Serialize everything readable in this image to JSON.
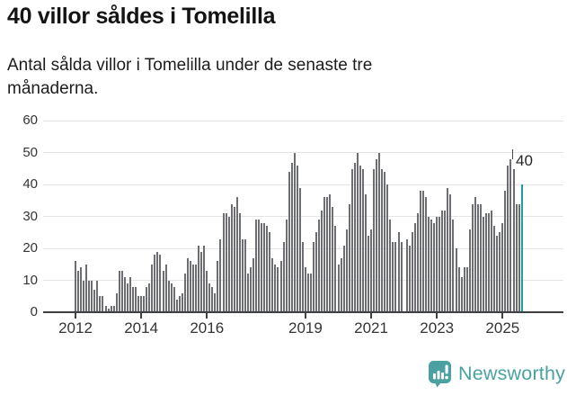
{
  "header": {
    "title": "40 villor såldes i Tomelilla",
    "subtitle": "Antal sålda villor i Tomelilla under de senaste tre månaderna."
  },
  "chart_data": {
    "type": "bar",
    "title": "40 villor såldes i Tomelilla",
    "subtitle": "Antal sålda villor i Tomelilla under de senaste tre månaderna.",
    "x_unit": "month",
    "start": "2012-01",
    "end": "2025-08",
    "ylim": [
      0,
      60
    ],
    "y_ticks": [
      0,
      10,
      20,
      30,
      40,
      50,
      60
    ],
    "x_tick_years": [
      2012,
      2014,
      2016,
      2019,
      2021,
      2023,
      2025
    ],
    "grid": "horizontal",
    "legend": "none",
    "bar_color": "#6d6e71",
    "highlight_color": "#1d9f9f",
    "highlight_index": 163,
    "annotation": {
      "label": "40",
      "target": "2025-08"
    },
    "values": [
      16,
      13,
      14,
      10,
      15,
      10,
      10,
      7,
      10,
      5,
      5,
      2,
      1,
      2,
      2,
      6,
      13,
      13,
      11,
      9,
      11,
      8,
      8,
      5,
      5,
      5,
      8,
      9,
      15,
      18,
      19,
      18,
      13,
      15,
      10,
      9,
      8,
      4,
      5,
      6,
      12,
      17,
      16,
      15,
      15,
      21,
      19,
      21,
      13,
      9,
      8,
      6,
      16,
      23,
      31,
      31,
      30,
      34,
      33,
      36,
      31,
      23,
      23,
      12,
      14,
      17,
      29,
      29,
      28,
      28,
      27,
      25,
      17,
      15,
      14,
      16,
      22,
      29,
      44,
      47,
      50,
      46,
      39,
      22,
      14,
      12,
      12,
      22,
      25,
      29,
      32,
      36,
      36,
      37,
      33,
      27,
      15,
      17,
      21,
      26,
      34,
      45,
      47,
      50,
      46,
      45,
      37,
      24,
      26,
      45,
      48,
      50,
      45,
      44,
      40,
      29,
      22,
      22,
      25,
      22,
      0,
      23,
      21,
      25,
      28,
      31,
      38,
      38,
      36,
      30,
      29,
      28,
      30,
      30,
      32,
      32,
      39,
      37,
      29,
      20,
      14,
      11,
      14,
      14,
      26,
      34,
      36,
      34,
      34,
      30,
      31,
      31,
      32,
      27,
      24,
      25,
      28,
      38,
      46,
      48,
      45,
      34,
      34,
      40
    ]
  },
  "footer": {
    "brand": "Newsworthy"
  },
  "colors": {
    "bar": "#6d6e71",
    "highlight": "#1d9f9f",
    "brand_teal": "#4ba1a1",
    "axis": "#3e3f42",
    "gridline": "#e4e4e4"
  }
}
